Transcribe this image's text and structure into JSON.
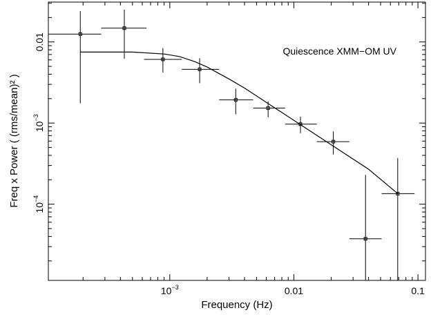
{
  "chart_data": {
    "type": "scatter",
    "title": "",
    "annotation": "Quiescence XMM−OM UV",
    "xlabel": "Frequency (Hz)",
    "ylabel": "Freq x Power ( (rms/mean)² )",
    "xscale": "log",
    "yscale": "log",
    "xlim": [
      0.000105,
      0.115
    ],
    "ylim": [
      1.15e-05,
      0.031
    ],
    "grid": false,
    "xticks": [
      {
        "value": 0.001,
        "base": "10",
        "exp": "−3"
      },
      {
        "value": 0.01,
        "label": "0.01"
      },
      {
        "value": 0.1,
        "label": "0.1"
      }
    ],
    "yticks": [
      {
        "value": 0.0001,
        "base": "10",
        "exp": "−4"
      },
      {
        "value": 0.001,
        "base": "10",
        "exp": "−3"
      },
      {
        "value": 0.01,
        "label": "0.01"
      }
    ],
    "series": [
      {
        "kind": "data",
        "points": [
          {
            "x": 0.00019,
            "y": 0.0125,
            "xlo": 0.000105,
            "xhi": 0.00028,
            "ylo": 0.00175,
            "yhi": 0.024
          },
          {
            "x": 0.00043,
            "y": 0.0148,
            "xlo": 0.00028,
            "xhi": 0.00065,
            "ylo": 0.0062,
            "yhi": 0.025
          },
          {
            "x": 0.00088,
            "y": 0.0061,
            "xlo": 0.00062,
            "xhi": 0.00125,
            "ylo": 0.0042,
            "yhi": 0.0084
          },
          {
            "x": 0.00174,
            "y": 0.0046,
            "xlo": 0.00125,
            "xhi": 0.0025,
            "ylo": 0.0031,
            "yhi": 0.0063
          },
          {
            "x": 0.0034,
            "y": 0.00193,
            "xlo": 0.0025,
            "xhi": 0.0047,
            "ylo": 0.00128,
            "yhi": 0.00265
          },
          {
            "x": 0.0062,
            "y": 0.00153,
            "xlo": 0.0047,
            "xhi": 0.0085,
            "ylo": 0.00118,
            "yhi": 0.00185
          },
          {
            "x": 0.0113,
            "y": 0.00097,
            "xlo": 0.0085,
            "xhi": 0.0153,
            "ylo": 0.00075,
            "yhi": 0.0012
          },
          {
            "x": 0.0208,
            "y": 0.00059,
            "xlo": 0.0153,
            "xhi": 0.028,
            "ylo": 0.00041,
            "yhi": 0.00079
          },
          {
            "x": 0.0378,
            "y": 3.75e-05,
            "xlo": 0.028,
            "xhi": 0.051,
            "ylo": 1.15e-05,
            "yhi": 0.00023
          },
          {
            "x": 0.0687,
            "y": 0.000135,
            "xlo": 0.051,
            "xhi": 0.094,
            "ylo": 1.15e-05,
            "yhi": 0.00037
          }
        ]
      },
      {
        "kind": "model",
        "x": [
          0.00019,
          0.0005,
          0.0009,
          0.0012,
          0.0016,
          0.002,
          0.003,
          0.004,
          0.006,
          0.01,
          0.02,
          0.04,
          0.0687
        ],
        "y": [
          0.0075,
          0.0075,
          0.0071,
          0.0066,
          0.0057,
          0.0049,
          0.0035,
          0.0027,
          0.0018,
          0.00108,
          0.00054,
          0.00027,
          0.000135
        ]
      }
    ],
    "colors": {
      "ink": "#000000",
      "background": "#ffffff"
    }
  }
}
